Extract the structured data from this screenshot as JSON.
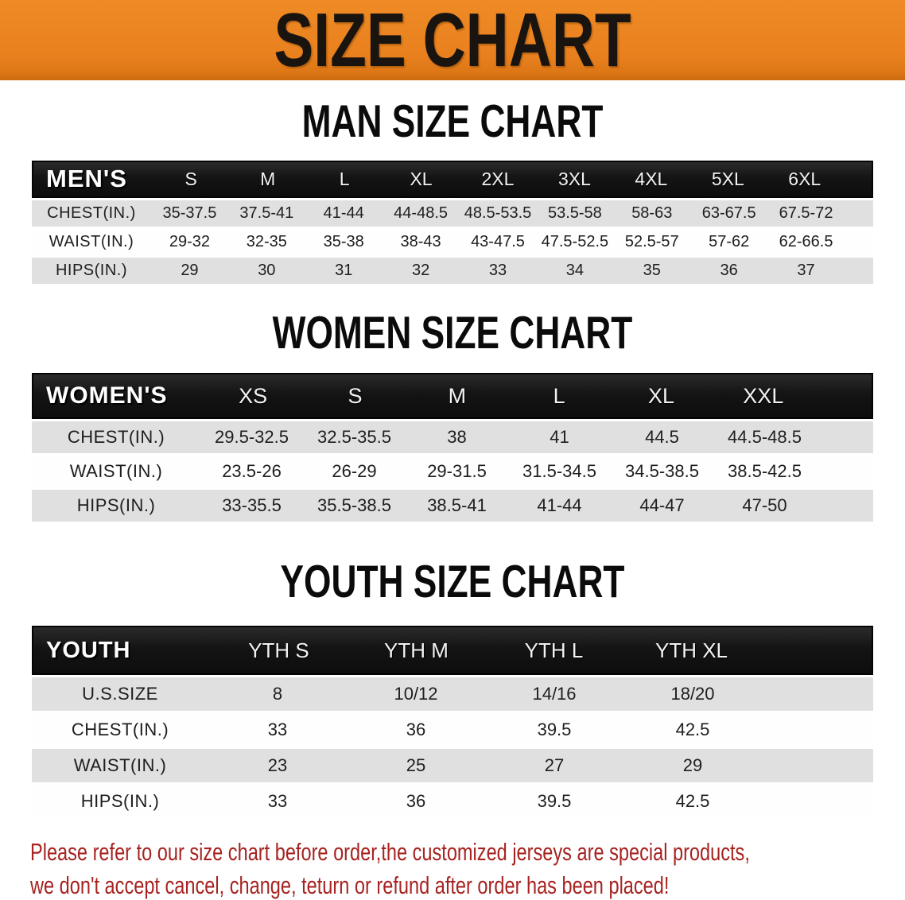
{
  "banner": {
    "title": "SIZE CHART"
  },
  "sections": [
    {
      "id": "men",
      "heading": "MAN SIZE CHART",
      "table": {
        "corner_label": "MEN'S",
        "columns": [
          "S",
          "M",
          "L",
          "XL",
          "2XL",
          "3XL",
          "4XL",
          "5XL",
          "6XL"
        ],
        "rows": [
          {
            "label": "CHEST(IN.)",
            "values": [
              "35-37.5",
              "37.5-41",
              "41-44",
              "44-48.5",
              "48.5-53.5",
              "53.5-58",
              "58-63",
              "63-67.5",
              "67.5-72"
            ]
          },
          {
            "label": "WAIST(IN.)",
            "values": [
              "29-32",
              "32-35",
              "35-38",
              "38-43",
              "43-47.5",
              "47.5-52.5",
              "52.5-57",
              "57-62",
              "62-66.5"
            ]
          },
          {
            "label": "HIPS(IN.)",
            "values": [
              "29",
              "30",
              "31",
              "32",
              "33",
              "34",
              "35",
              "36",
              "37"
            ]
          }
        ]
      }
    },
    {
      "id": "women",
      "heading": "WOMEN SIZE CHART",
      "table": {
        "corner_label": "WOMEN'S",
        "columns": [
          "XS",
          "S",
          "M",
          "L",
          "XL",
          "XXL"
        ],
        "rows": [
          {
            "label": "CHEST(IN.)",
            "values": [
              "29.5-32.5",
              "32.5-35.5",
              "38",
              "41",
              "44.5",
              "44.5-48.5"
            ]
          },
          {
            "label": "WAIST(IN.)",
            "values": [
              "23.5-26",
              "26-29",
              "29-31.5",
              "31.5-34.5",
              "34.5-38.5",
              "38.5-42.5"
            ]
          },
          {
            "label": "HIPS(IN.)",
            "values": [
              "33-35.5",
              "35.5-38.5",
              "38.5-41",
              "41-44",
              "44-47",
              "47-50"
            ]
          }
        ]
      }
    },
    {
      "id": "youth",
      "heading": "YOUTH SIZE CHART",
      "table": {
        "corner_label": "YOUTH",
        "columns": [
          "YTH S",
          "YTH M",
          "YTH L",
          "YTH XL"
        ],
        "rows": [
          {
            "label": "U.S.SIZE",
            "values": [
              "8",
              "10/12",
              "14/16",
              "18/20"
            ]
          },
          {
            "label": "CHEST(IN.)",
            "values": [
              "33",
              "36",
              "39.5",
              "42.5"
            ]
          },
          {
            "label": "WAIST(IN.)",
            "values": [
              "23",
              "25",
              "27",
              "29"
            ]
          },
          {
            "label": "HIPS(IN.)",
            "values": [
              "33",
              "36",
              "39.5",
              "42.5"
            ]
          }
        ]
      }
    }
  ],
  "footnote": {
    "line1": "Please refer to our size chart before order,the customized jerseys are special products,",
    "line2": "we don't accept cancel, change, teturn or refund after order has been placed!"
  },
  "colors": {
    "banner_orange": "#e8801e",
    "banner_text": "#1a1410",
    "header_black": "#141414",
    "header_text": "#ffffff",
    "row_gray": "#e0e0e0",
    "row_white": "#fefefe",
    "body_text": "#1e1e1e",
    "note_red": "#a62321"
  }
}
